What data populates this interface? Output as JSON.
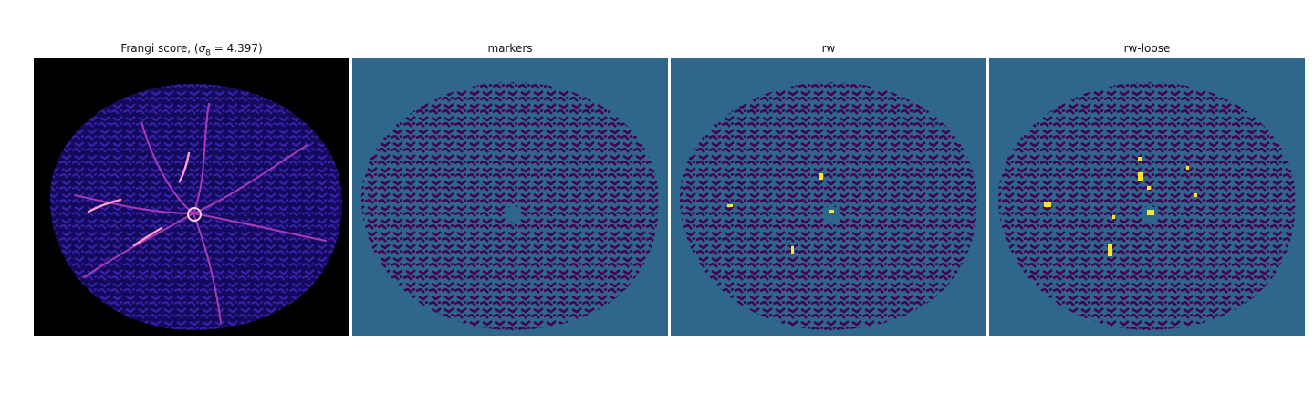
{
  "panels": [
    {
      "title_prefix": "Frangi score, (",
      "title_sigma": "σ",
      "title_sigma_sub": "8",
      "title_suffix": " = 4.397)",
      "colormap": "magma",
      "background_color": "#000000",
      "body_color": "#1a0f8a",
      "accent_colors": [
        "#6a1fbf",
        "#b03ab8",
        "#ff8fc6",
        "#ffd1ea"
      ]
    },
    {
      "title": "markers",
      "colormap": "viridis",
      "background_color": "#2e668c",
      "vessel_color": "#440154"
    },
    {
      "title": "rw",
      "colormap": "viridis",
      "background_color": "#2e668c",
      "vessel_color": "#440154",
      "highlight_color": "#fde725"
    },
    {
      "title": "rw-loose",
      "colormap": "viridis",
      "background_color": "#2e668c",
      "vessel_color": "#440154",
      "highlight_color": "#fde725"
    }
  ]
}
